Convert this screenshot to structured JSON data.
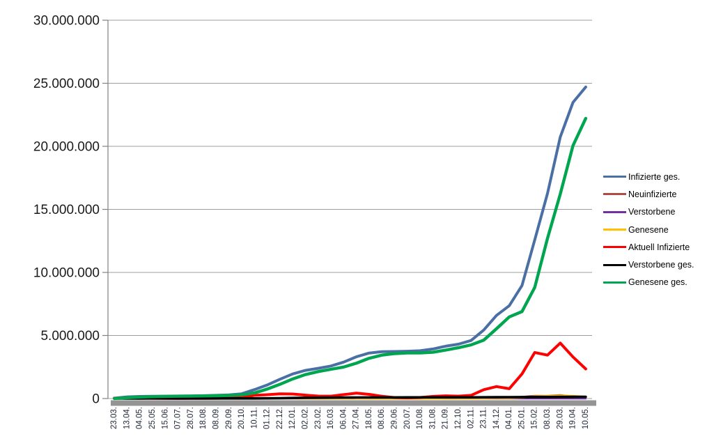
{
  "colors": {
    "background": "#ffffff",
    "gridline": "#9d9d9d",
    "axis": "#808080",
    "y_tick_label": "#1a1a1a",
    "x_tick_label": "#222a3a",
    "shadow_bar": "#949494"
  },
  "chart_data": {
    "type": "line",
    "title": "",
    "xlabel": "",
    "ylabel": "",
    "ylim": [
      0,
      30000000
    ],
    "y_tick_step": 5000000,
    "y_tick_labels": [
      "0",
      "5.000.000",
      "10.000.000",
      "15.000.000",
      "20.000.000",
      "25.000.000",
      "30.000.000"
    ],
    "grid": true,
    "legend_position": "right",
    "categories": [
      "23.03.",
      "13.04.",
      "04.05.",
      "25.05.",
      "15.06.",
      "07.07.",
      "28.07.",
      "18.08.",
      "08.09.",
      "29.09.",
      "20.10.",
      "10.11.",
      "01.12.",
      "22.12.",
      "12.01.",
      "02.02.",
      "23.02.",
      "16.03.",
      "06.04.",
      "27.04.",
      "18.05.",
      "08.06.",
      "29.06.",
      "20.07.",
      "10.08.",
      "31.08.",
      "21.09.",
      "12.10.",
      "02.11.",
      "23.11.",
      "14.12.",
      "04.01.",
      "25.01.",
      "15.02.",
      "08.03.",
      "29.03.",
      "19.04.",
      "10.05."
    ],
    "series": [
      {
        "name": "Infizierte ges.",
        "color": "#4a6fa5",
        "values": [
          29000,
          130000,
          165000,
          180000,
          190000,
          198000,
          207000,
          226000,
          253000,
          289000,
          373000,
          707000,
          1070000,
          1530000,
          1953000,
          2230000,
          2400000,
          2580000,
          2890000,
          3310000,
          3610000,
          3710000,
          3730000,
          3750000,
          3790000,
          3930000,
          4150000,
          4310000,
          4600000,
          5430000,
          6590000,
          7360000,
          8960000,
          12580000,
          16260000,
          20730000,
          23480000,
          24700000
        ]
      },
      {
        "name": "Neuinfizierte",
        "color": "#b04a44",
        "values": [
          4800,
          2800,
          1000,
          500,
          300,
          400,
          600,
          1400,
          1500,
          2000,
          7000,
          18000,
          18000,
          25000,
          15000,
          9000,
          8000,
          13000,
          16000,
          22000,
          12000,
          4000,
          1000,
          1500,
          5000,
          10000,
          8000,
          10000,
          20000,
          45000,
          50000,
          40000,
          130000,
          220000,
          210000,
          270000,
          160000,
          90000
        ]
      },
      {
        "name": "Verstorbene",
        "color": "#7030a0",
        "values": [
          30,
          200,
          150,
          50,
          20,
          10,
          5,
          5,
          5,
          10,
          30,
          150,
          400,
          700,
          900,
          700,
          400,
          250,
          200,
          250,
          200,
          100,
          60,
          30,
          20,
          40,
          60,
          80,
          150,
          250,
          400,
          350,
          200,
          250,
          250,
          300,
          250,
          150
        ]
      },
      {
        "name": "Genesene",
        "color": "#ffc000",
        "values": [
          1000,
          3500,
          2500,
          1000,
          500,
          400,
          500,
          1000,
          1200,
          1500,
          3000,
          10000,
          17000,
          22000,
          20000,
          14000,
          9000,
          10000,
          14000,
          19000,
          17000,
          8000,
          3000,
          1500,
          3000,
          7000,
          9000,
          9000,
          14000,
          30000,
          45000,
          45000,
          75000,
          170000,
          190000,
          220000,
          200000,
          130000
        ]
      },
      {
        "name": "Aktuell Infizierte",
        "color": "#fe0000",
        "values": [
          25000,
          60000,
          40000,
          20000,
          10000,
          8000,
          10000,
          15000,
          21000,
          33000,
          73000,
          255000,
          302000,
          378000,
          357000,
          269000,
          192000,
          188000,
          313000,
          425000,
          330000,
          180000,
          77000,
          48000,
          85000,
          168000,
          215000,
          186000,
          252000,
          700000,
          950000,
          780000,
          1950000,
          3650000,
          3440000,
          4400000,
          3300000,
          2350000
        ]
      },
      {
        "name": "Verstorbene ges.",
        "color": "#000000",
        "values": [
          400,
          3000,
          6900,
          8400,
          8800,
          9000,
          9100,
          9200,
          9300,
          9500,
          9800,
          11700,
          17000,
          27000,
          43000,
          59000,
          69000,
          74000,
          77000,
          82000,
          86500,
          89000,
          90500,
          91400,
          91800,
          92200,
          93000,
          94200,
          96000,
          100000,
          106000,
          113000,
          117000,
          120500,
          124000,
          128000,
          132500,
          137000
        ]
      },
      {
        "name": "Genesene ges.",
        "color": "#00a550",
        "values": [
          3600,
          67000,
          118000,
          151600,
          171200,
          181000,
          187900,
          201800,
          222700,
          246500,
          290200,
          440300,
          751000,
          1125000,
          1553000,
          1902000,
          2139000,
          2318000,
          2500000,
          2803000,
          3193500,
          3441000,
          3562500,
          3610600,
          3613200,
          3669800,
          3842000,
          4029800,
          4252000,
          4630000,
          5534000,
          6467000,
          6893000,
          8809500,
          12696000,
          16202000,
          20047500,
          22213000
        ]
      }
    ]
  }
}
